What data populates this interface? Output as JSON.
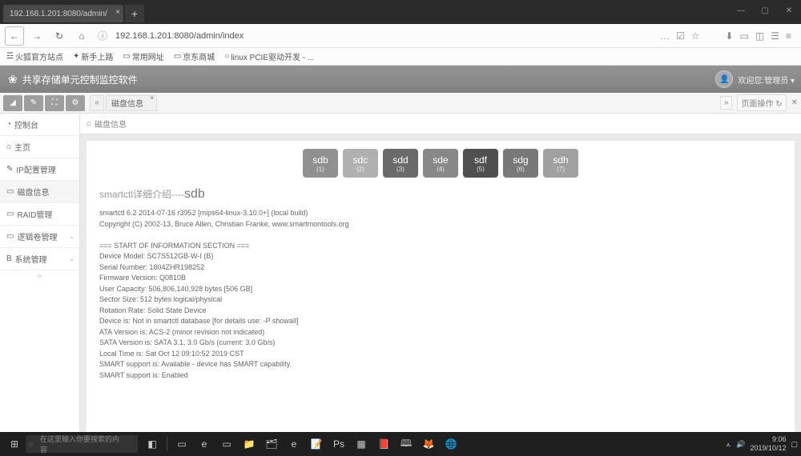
{
  "browser": {
    "tab_title": "192.168.1.201:8080/admin/",
    "url": "192.168.1.201:8080/admin/index",
    "url_prefix": "ⓘ",
    "nav_icons": {
      "back": "←",
      "forward": "→",
      "reload": "↻",
      "home": "⌂"
    },
    "right_icons": [
      "…",
      "☑",
      "☆"
    ],
    "far_icons": [
      "⬇",
      "▭",
      "◫",
      "☰",
      "≡"
    ]
  },
  "bookmarks": [
    {
      "icon": "☲",
      "label": "火狐官方站点"
    },
    {
      "icon": "✦",
      "label": "新手上路"
    },
    {
      "icon": "▭",
      "label": "常用网址"
    },
    {
      "icon": "▭",
      "label": "京东商城"
    },
    {
      "icon": "○",
      "label": "linux PCIE驱动开发 - ..."
    }
  ],
  "app": {
    "title": "共享存储单元控制监控软件",
    "user": "欢迎您:管理员 ▾"
  },
  "toolbar": {
    "buttons": [
      "◢",
      "✎",
      "⛶",
      "⚙"
    ],
    "subtab_arrow": "«",
    "subtab_label": "磁盘信息",
    "page_ops": "页面操作 ↻",
    "collapse": "»"
  },
  "sidebar": {
    "items": [
      {
        "icon": "◔",
        "label": "控制台"
      },
      {
        "icon": "⌂",
        "label": "主页"
      },
      {
        "icon": "✎",
        "label": "IP配置管理"
      },
      {
        "icon": "▭",
        "label": "磁盘信息"
      },
      {
        "icon": "▭",
        "label": "RAID管理"
      },
      {
        "icon": "▭",
        "label": "逻辑卷管理",
        "chev": "⌄"
      },
      {
        "icon": "B",
        "label": "系统管理",
        "chev": "⌄"
      }
    ]
  },
  "breadcrumb": {
    "home": "⌂",
    "label": "磁盘信息"
  },
  "disks": [
    {
      "name": "sdb",
      "num": "(1)",
      "cls": "c1"
    },
    {
      "name": "sdc",
      "num": "(2)",
      "cls": "c2"
    },
    {
      "name": "sdd",
      "num": "(3)",
      "cls": "c3"
    },
    {
      "name": "sde",
      "num": "(4)",
      "cls": "c4"
    },
    {
      "name": "sdf",
      "num": "(5)",
      "cls": "c5"
    },
    {
      "name": "sdg",
      "num": "(6)",
      "cls": "c6"
    },
    {
      "name": "sdh",
      "num": "(7)",
      "cls": "c7"
    }
  ],
  "detail": {
    "title_prefix": "smartctl详细介绍----",
    "title_disk": "sdb",
    "lines": [
      "smartctl 6.2 2014-07-16 r3952 [mips64-linux-3.10.0+] (local build)",
      "Copyright (C) 2002-13, Bruce Allen, Christian Franke, www.smartmontools.org",
      "",
      "=== START OF INFORMATION SECTION ===",
      "Device Model: SC7S512GB-W-I (B)",
      "Serial Number: 1804ZHR198252",
      "Firmware Version: Q0810B",
      "User Capacity: 506,806,140,928 bytes [506 GB]",
      "Sector Size: 512 bytes logical/physical",
      "Rotation Rate: Solid State Device",
      "Device is: Not in smartctl database [for details use: -P showall]",
      "ATA Version is: ACS-2 (minor revision not indicated)",
      "SATA Version is: SATA 3.1, 3.0 Gb/s (current: 3.0 Gb/s)",
      "Local Time is: Sat Oct 12 09:10:52 2019 CST",
      "SMART support is: Available - device has SMART capability.",
      "SMART support is: Enabled"
    ]
  },
  "taskbar": {
    "search_placeholder": "在这里输入你要搜索的内容",
    "apps": [
      "⊞",
      "◧",
      "▭",
      "e",
      "▭",
      "📁",
      "🗂",
      "e",
      "📝",
      "Ps",
      "▦",
      "📕",
      "🕮",
      "🦊",
      "🌐"
    ],
    "right": [
      "ㅅ",
      "🔊"
    ],
    "time": "9:06",
    "date": "2019/10/12"
  }
}
